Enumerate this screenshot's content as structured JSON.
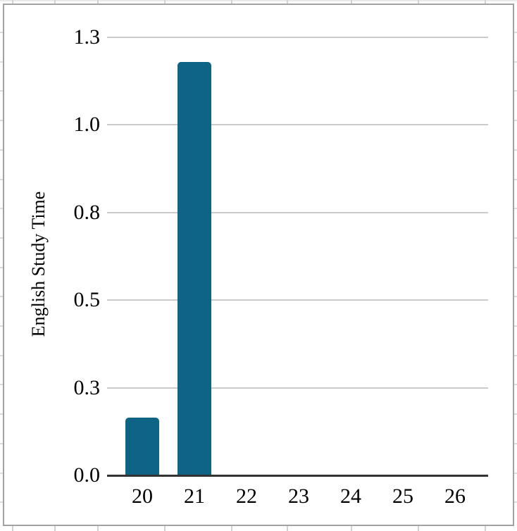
{
  "chart_data": {
    "type": "bar",
    "title": "",
    "categories": [
      "20",
      "21",
      "22",
      "23",
      "24",
      "25",
      "26"
    ],
    "values": [
      0.165,
      1.18,
      0,
      0,
      0,
      0,
      0
    ],
    "xlabel": "",
    "ylabel": "English Study Time",
    "y_ticks": [
      {
        "label": "0.0",
        "value": 0
      },
      {
        "label": "0.3",
        "value": 0.25
      },
      {
        "label": "0.5",
        "value": 0.5
      },
      {
        "label": "0.8",
        "value": 0.75
      },
      {
        "label": "1.0",
        "value": 1.0
      },
      {
        "label": "1.3",
        "value": 1.25
      }
    ],
    "ylim": [
      0,
      1.25
    ],
    "grid": "horizontal",
    "legend": "none",
    "bar_color": "#0d6485",
    "axis_color": "#333333",
    "gridline_color": "#cbcbcb",
    "frame_border_color": "#a2a2a2"
  }
}
